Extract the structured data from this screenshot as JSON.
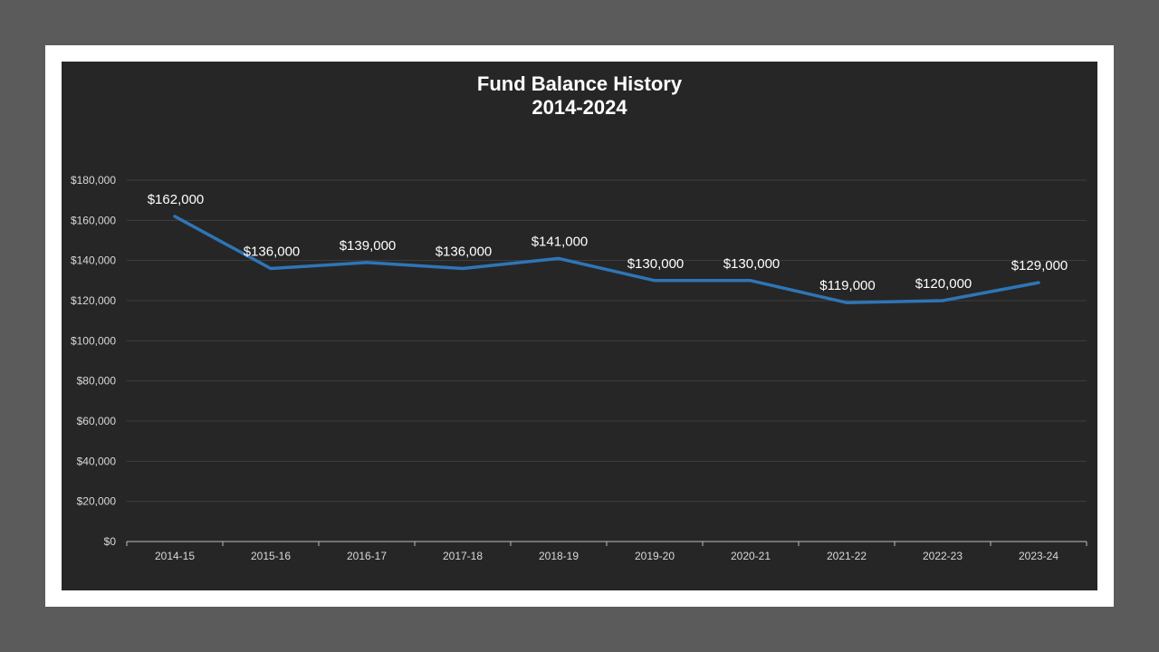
{
  "chart_data": {
    "type": "line",
    "title": "Fund Balance History",
    "subtitle": "2014-2024",
    "categories": [
      "2014-15",
      "2015-16",
      "2016-17",
      "2017-18",
      "2018-19",
      "2019-20",
      "2020-21",
      "2021-22",
      "2022-23",
      "2023-24"
    ],
    "series": [
      {
        "values": [
          162000,
          136000,
          139000,
          136000,
          141000,
          130000,
          130000,
          119000,
          120000,
          129000
        ],
        "labels": [
          "$162,000",
          "$136,000",
          "$139,000",
          "$136,000",
          "$141,000",
          "$130,000",
          "$130,000",
          "$119,000",
          "$120,000",
          "$129,000"
        ],
        "color": "#2e75b6"
      }
    ],
    "ylim": [
      0,
      180000
    ],
    "yticks": [
      0,
      20000,
      40000,
      60000,
      80000,
      100000,
      120000,
      140000,
      160000,
      180000
    ],
    "ytick_labels": [
      "$0",
      "$20,000",
      "$40,000",
      "$60,000",
      "$80,000",
      "$100,000",
      "$120,000",
      "$140,000",
      "$160,000",
      "$180,000"
    ],
    "grid": true,
    "legend": "none"
  },
  "colors": {
    "background": "#262626",
    "gridline": "#3f3f3f",
    "axis": "#bfbfbf",
    "text": "#ffffff",
    "tick_text": "#d9d9d9"
  }
}
